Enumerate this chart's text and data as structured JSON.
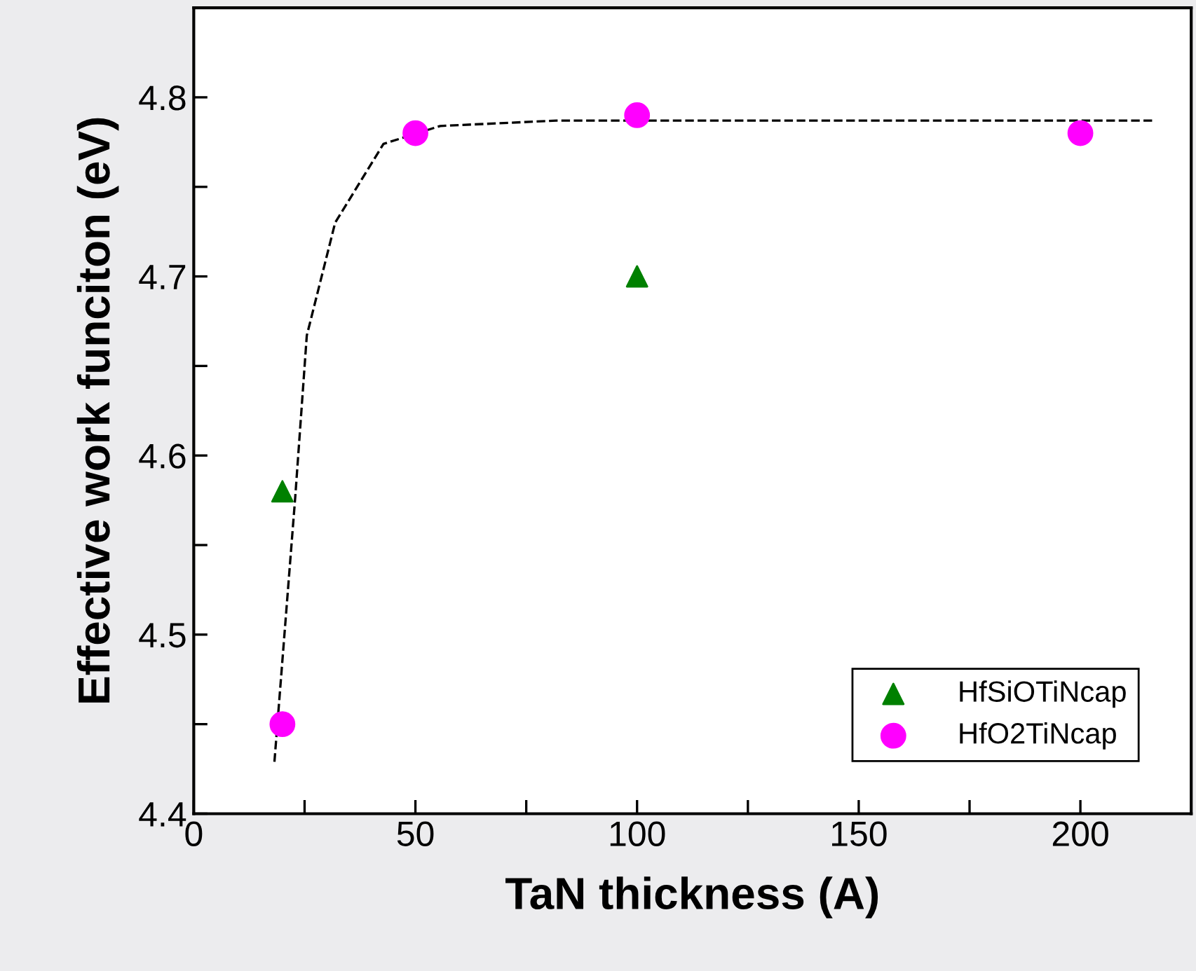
{
  "chart_data": {
    "type": "scatter",
    "xlabel": "TaN thickness (A)",
    "ylabel": "Effective work funciton (eV)",
    "xlim": [
      0,
      225
    ],
    "ylim": [
      4.4,
      4.85
    ],
    "xticks": [
      0,
      {
        "value": 25,
        "label": null
      },
      50,
      {
        "value": 75,
        "label": null
      },
      100,
      {
        "value": 125,
        "label": null
      },
      150,
      {
        "value": 175,
        "label": null
      },
      200
    ],
    "yticks": [
      4.4,
      {
        "value": 4.45,
        "label": null
      },
      4.5,
      {
        "value": 4.55,
        "label": null
      },
      4.6,
      {
        "value": 4.65,
        "label": null
      },
      4.7,
      {
        "value": 4.75,
        "label": null
      },
      4.8
    ],
    "grid": false,
    "legend": "bottom right",
    "series": [
      {
        "name": "HfSiOTiNcap",
        "marker": "triangle",
        "color": "#008000",
        "x": [
          20,
          100
        ],
        "values": [
          4.58,
          4.7
        ]
      },
      {
        "name": "HfO2TiNcap",
        "marker": "circle",
        "color": "#ff00ff",
        "x": [
          20,
          50,
          100,
          200
        ],
        "values": [
          4.45,
          4.78,
          4.79,
          4.78
        ]
      },
      {
        "type": "line",
        "line_style": "dashed",
        "marker": "none",
        "color": "#000000",
        "x": [
          18.2,
          22.9,
          25.5,
          31.9,
          42.8,
          55.6,
          81.8,
          216.5
        ],
        "values": [
          4.429,
          4.577,
          4.667,
          4.73,
          4.774,
          4.784,
          4.787,
          4.787
        ]
      }
    ]
  }
}
